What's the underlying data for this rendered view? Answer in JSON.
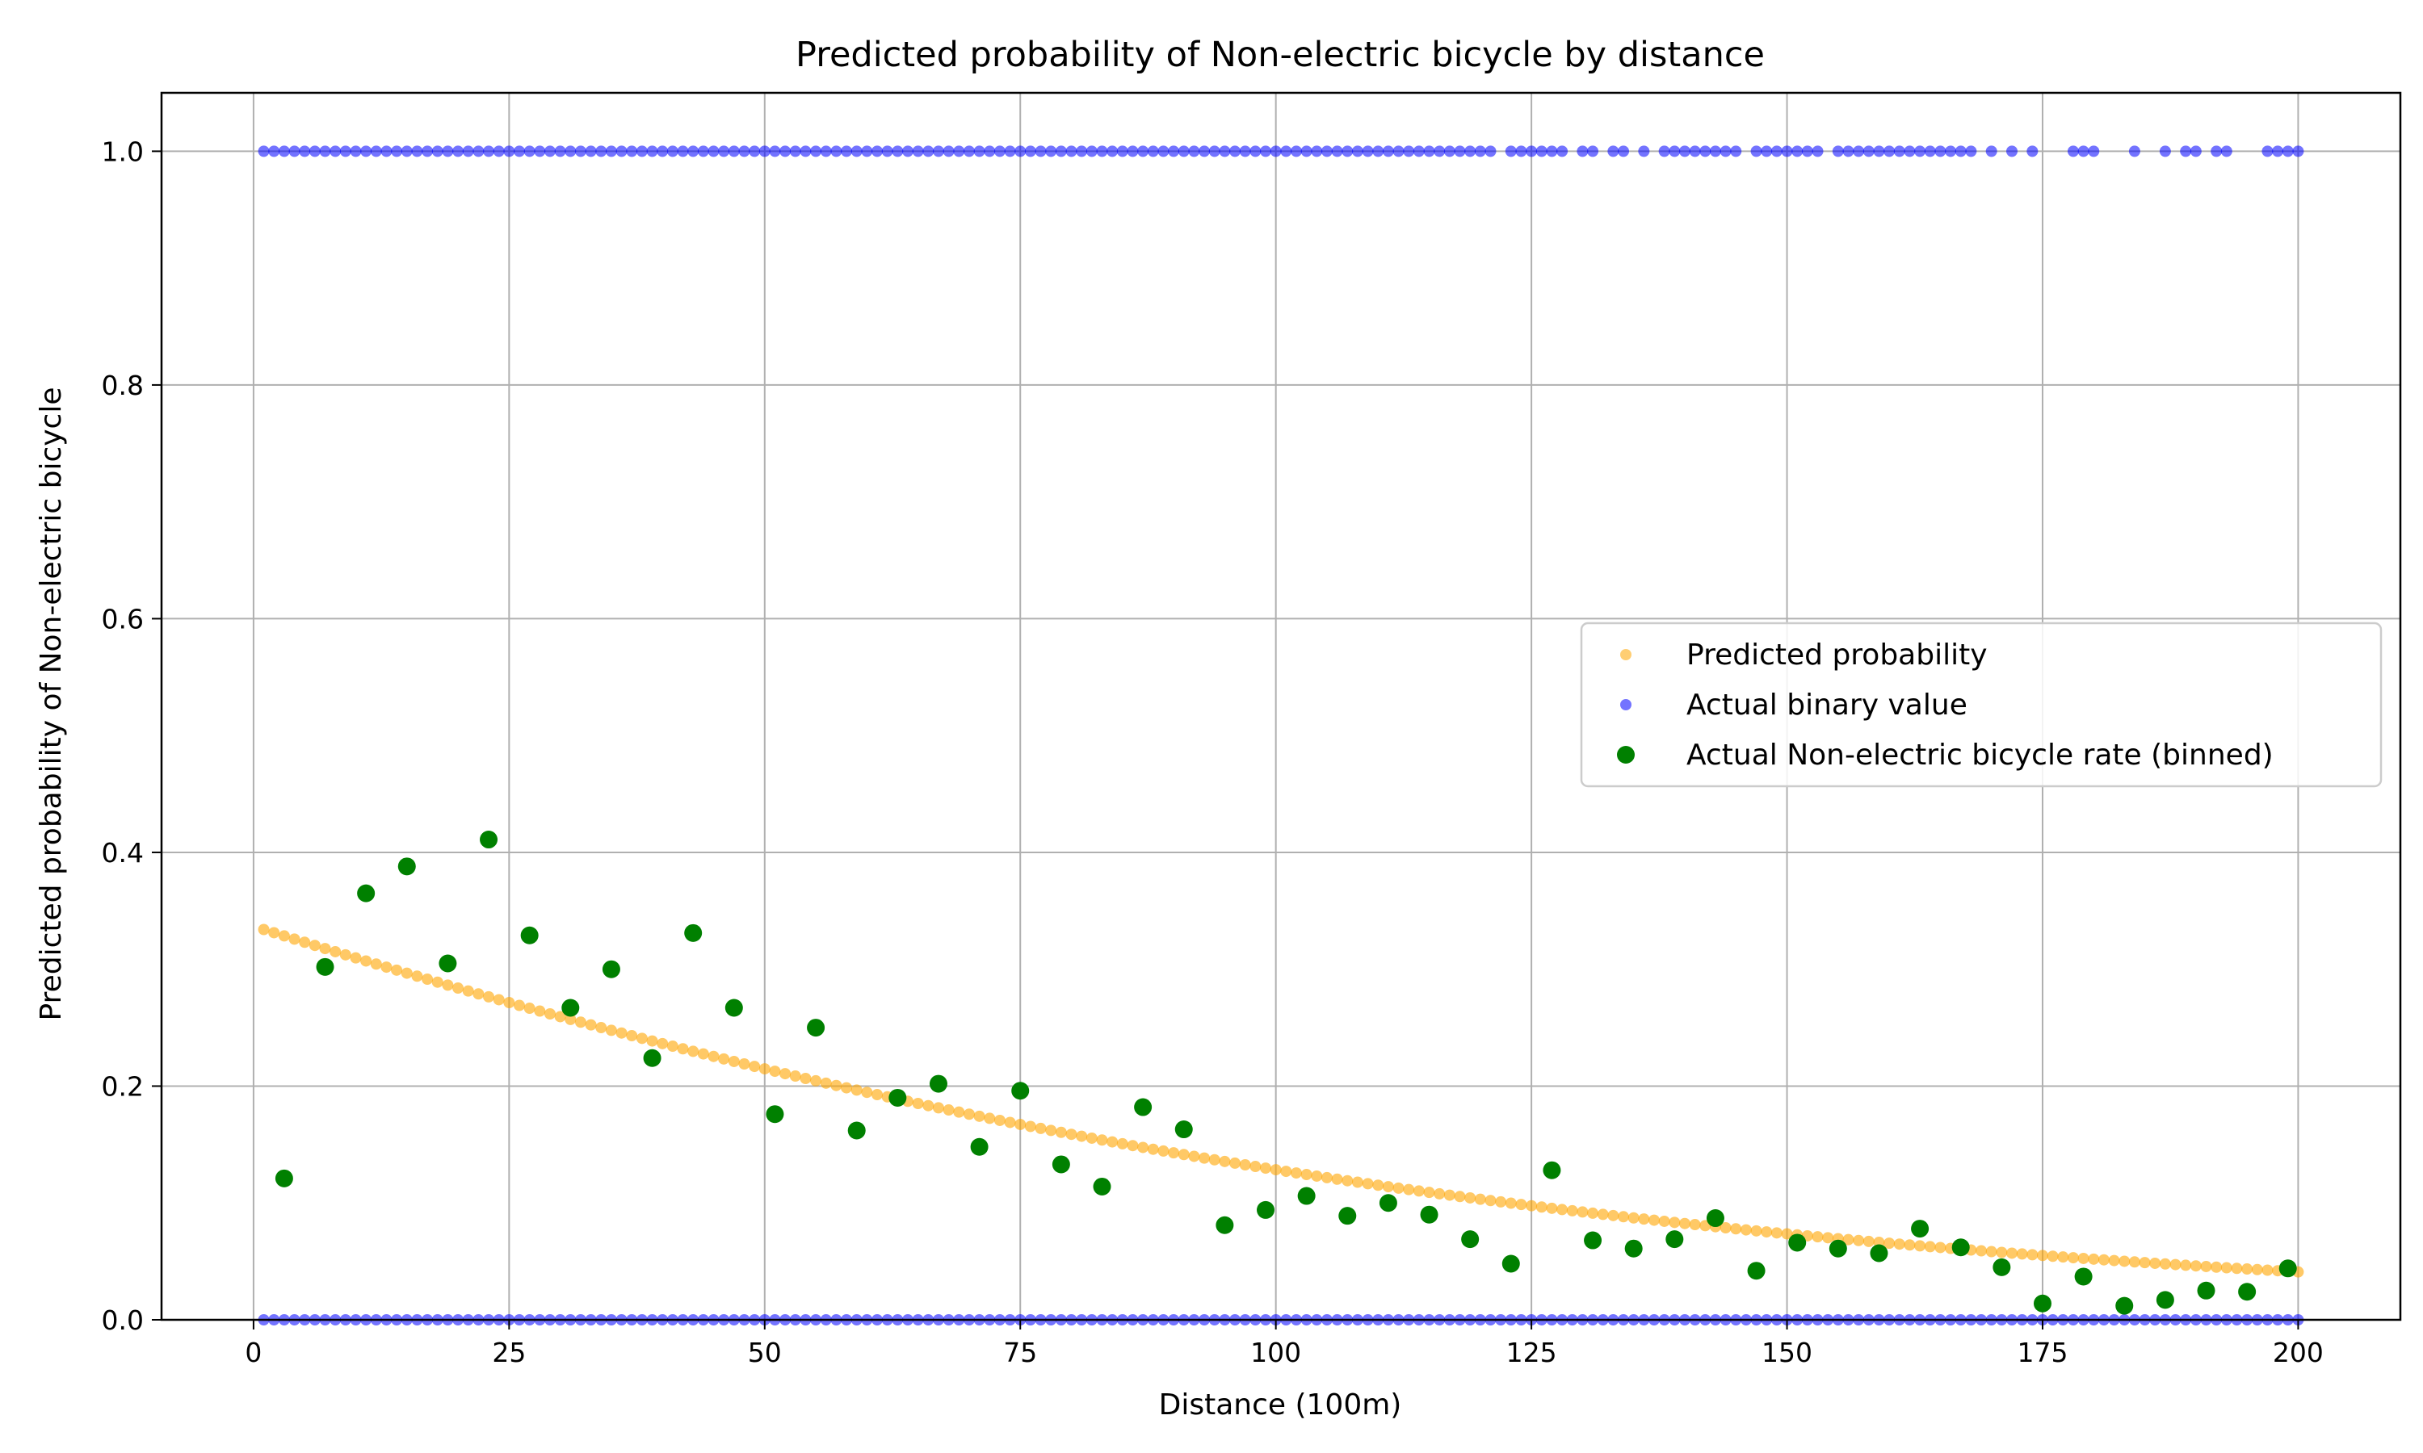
{
  "chart_data": {
    "type": "scatter",
    "title": "Predicted probability of Non-electric bicycle by distance",
    "xlabel": "Distance (100m)",
    "ylabel": "Predicted probability of Non-electric bicycle",
    "xlim": [
      -9,
      210
    ],
    "ylim": [
      0,
      1.05
    ],
    "x_ticks": [
      0,
      25,
      50,
      75,
      100,
      125,
      150,
      175,
      200
    ],
    "x_tick_labels": [
      "0",
      "25",
      "50",
      "75",
      "100",
      "125",
      "150",
      "175",
      "200"
    ],
    "y_ticks": [
      0.0,
      0.2,
      0.4,
      0.6,
      0.8,
      1.0
    ],
    "y_tick_labels": [
      "0.0",
      "0.2",
      "0.4",
      "0.6",
      "0.8",
      "1.0"
    ],
    "grid": true,
    "legend_position": "center-right",
    "series": [
      {
        "name": "Predicted probability",
        "kind": "curve-points",
        "color": "#FFA500",
        "x_range": [
          1,
          200
        ],
        "x_step": 1,
        "y_at_x_1": 0.334,
        "y_at_x_50": 0.217,
        "y_at_x_100": 0.126,
        "y_at_x_150": 0.071,
        "y_at_x_200": 0.041
      },
      {
        "name": "Actual binary value",
        "kind": "binary",
        "color": "#0000FF",
        "y_values": [
          0,
          1
        ],
        "x_range": [
          1,
          200
        ],
        "top_row_x": [
          1,
          2,
          3,
          4,
          5,
          6,
          7,
          8,
          9,
          10,
          11,
          12,
          13,
          14,
          15,
          16,
          17,
          18,
          19,
          20,
          21,
          22,
          23,
          24,
          25,
          26,
          27,
          28,
          29,
          30,
          31,
          32,
          33,
          34,
          35,
          36,
          37,
          38,
          39,
          40,
          41,
          42,
          43,
          44,
          45,
          46,
          47,
          48,
          49,
          50,
          51,
          52,
          53,
          54,
          55,
          56,
          57,
          58,
          59,
          60,
          61,
          62,
          63,
          64,
          65,
          66,
          67,
          68,
          69,
          70,
          71,
          72,
          73,
          74,
          75,
          76,
          77,
          78,
          79,
          80,
          81,
          82,
          83,
          84,
          85,
          86,
          87,
          88,
          89,
          90,
          91,
          92,
          93,
          94,
          95,
          96,
          97,
          98,
          99,
          100,
          101,
          102,
          103,
          104,
          105,
          106,
          107,
          108,
          109,
          110,
          111,
          112,
          113,
          114,
          115,
          116,
          117,
          118,
          119,
          120,
          121,
          123,
          124,
          125,
          126,
          127,
          128,
          130,
          131,
          133,
          134,
          136,
          138,
          139,
          140,
          141,
          142,
          143,
          144,
          145,
          147,
          148,
          149,
          150,
          151,
          152,
          153,
          155,
          156,
          157,
          158,
          159,
          160,
          161,
          162,
          163,
          164,
          165,
          166,
          167,
          168,
          170,
          172,
          174,
          178,
          179,
          180,
          184,
          187,
          189,
          190,
          192,
          193,
          197,
          198,
          199,
          200
        ],
        "bottom_row_x_range": [
          1,
          200
        ]
      },
      {
        "name": "Actual Non-electric bicycle rate (binned)",
        "kind": "binned",
        "color": "#008000",
        "x": [
          3,
          7,
          11,
          15,
          19,
          23,
          27,
          31,
          35,
          39,
          43,
          47,
          51,
          55,
          59,
          63,
          67,
          71,
          75,
          79,
          83,
          87,
          91,
          95,
          99,
          103,
          107,
          111,
          115,
          119,
          123,
          127,
          131,
          135,
          139,
          143,
          147,
          151,
          155,
          159,
          163,
          167,
          171,
          175,
          179,
          183,
          187,
          191,
          195,
          199
        ],
        "y": [
          0.121,
          0.302,
          0.365,
          0.388,
          0.305,
          0.411,
          0.329,
          0.267,
          0.3,
          0.224,
          0.331,
          0.267,
          0.176,
          0.25,
          0.162,
          0.19,
          0.202,
          0.148,
          0.196,
          0.133,
          0.114,
          0.182,
          0.163,
          0.081,
          0.094,
          0.106,
          0.089,
          0.1,
          0.09,
          0.069,
          0.048,
          0.128,
          0.068,
          0.061,
          0.069,
          0.087,
          0.042,
          0.066,
          0.061,
          0.057,
          0.078,
          0.062,
          0.045,
          0.014,
          0.037,
          0.012,
          0.017,
          0.025,
          0.024,
          0.044
        ]
      }
    ]
  }
}
